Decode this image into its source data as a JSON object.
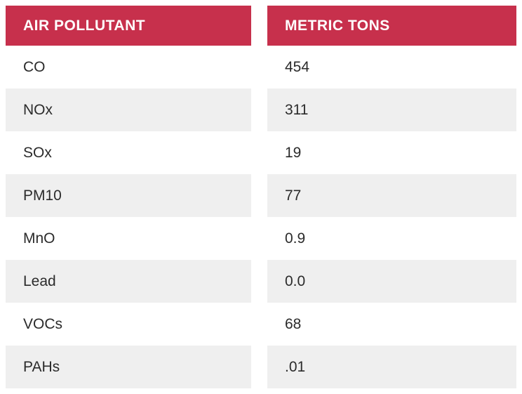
{
  "chart_data": {
    "type": "table",
    "columns": [
      "AIR POLLUTANT",
      "METRIC TONS"
    ],
    "rows": [
      [
        "CO",
        "454"
      ],
      [
        "NOx",
        "311"
      ],
      [
        "SOx",
        "19"
      ],
      [
        "PM10",
        "77"
      ],
      [
        "MnO",
        "0.9"
      ],
      [
        "Lead",
        "0.0"
      ],
      [
        "VOCs",
        "68"
      ],
      [
        "PAHs",
        ".01"
      ]
    ]
  },
  "colors": {
    "header_bg": "#c7304c",
    "header_text": "#ffffff",
    "stripe_bg": "#efefef",
    "body_text": "#2b2b2b"
  }
}
